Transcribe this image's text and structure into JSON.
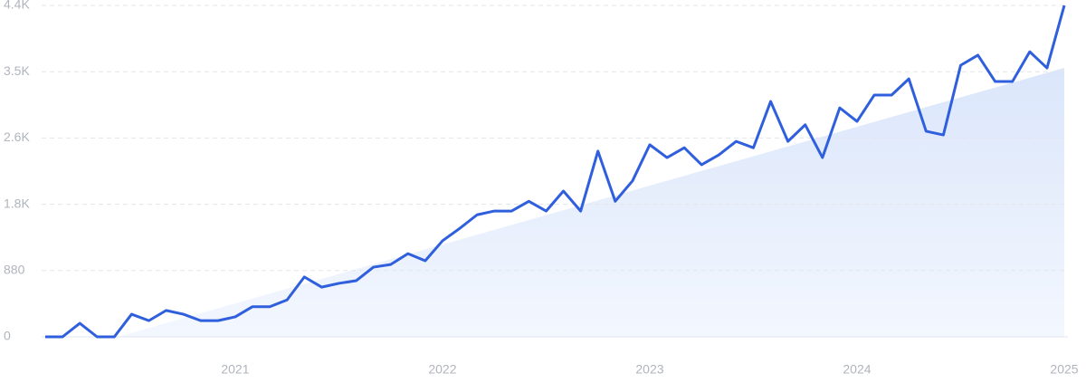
{
  "chart_data": {
    "type": "line",
    "categories": [
      null,
      null,
      null,
      null,
      null,
      null,
      null,
      null,
      null,
      null,
      null,
      "2021",
      null,
      null,
      null,
      null,
      null,
      null,
      null,
      null,
      null,
      null,
      null,
      "2022",
      null,
      null,
      null,
      null,
      null,
      null,
      null,
      null,
      null,
      null,
      null,
      "2023",
      null,
      null,
      null,
      null,
      null,
      null,
      null,
      null,
      null,
      null,
      null,
      "2024",
      null,
      null,
      null,
      null,
      null,
      null,
      null,
      null,
      null,
      null,
      null,
      "2025"
    ],
    "series": [
      {
        "color": "#2f5fdc",
        "values": [
          0,
          0,
          180,
          0,
          0,
          300,
          215,
          350,
          300,
          215,
          215,
          265,
          400,
          400,
          490,
          795,
          660,
          710,
          745,
          925,
          960,
          1105,
          1010,
          1275,
          1440,
          1620,
          1670,
          1670,
          1800,
          1670,
          1935,
          1670,
          2465,
          1800,
          2070,
          2550,
          2380,
          2510,
          2285,
          2415,
          2595,
          2510,
          3125,
          2595,
          2815,
          2380,
          3040,
          2860,
          3210,
          3210,
          3425,
          2730,
          2680,
          3605,
          3740,
          3390,
          3390,
          3785,
          3570,
          4400
        ]
      }
    ],
    "ylim": [
      0,
      4400
    ],
    "yticks": [
      0,
      880,
      {
        "value": 1760,
        "label": "1.8K"
      },
      {
        "value": 2640,
        "label": "2.6K"
      },
      {
        "value": 3520,
        "label": "3.5K"
      },
      {
        "value": 4400,
        "label": "4.4K"
      }
    ],
    "grid": true
  }
}
